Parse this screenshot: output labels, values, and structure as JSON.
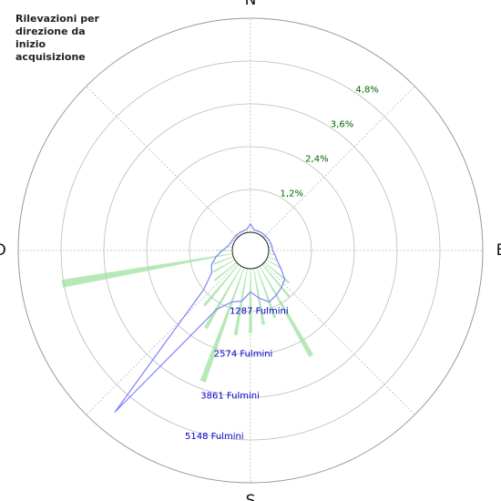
{
  "chart_data": {
    "type": "polar",
    "title": "Rilevazioni per direzione da inizio acquisizione",
    "x": [
      0,
      10,
      20,
      30,
      40,
      50,
      60,
      70,
      80,
      90,
      100,
      110,
      120,
      130,
      140,
      150,
      160,
      170,
      180,
      190,
      200,
      210,
      220,
      230,
      240,
      250,
      260,
      270,
      280,
      290,
      300,
      310,
      320,
      330,
      340,
      350
    ],
    "direction_ticks": [
      {
        "value": 0,
        "label": "N"
      },
      {
        "value": 90,
        "label": "E"
      },
      {
        "value": 180,
        "label": "S"
      },
      {
        "value": 270,
        "label": "O"
      }
    ],
    "series": [
      {
        "color": "#9fe09f",
        "values": [
          0.1,
          0.1,
          0.1,
          0.1,
          0.1,
          0.1,
          0.1,
          0.1,
          0.1,
          0.1,
          0.2,
          0.3,
          0.5,
          0.9,
          1.2,
          2.9,
          1.5,
          1.6,
          1.8,
          1.9,
          3.4,
          2.0,
          1.5,
          0.8,
          0.7,
          0.6,
          4.85,
          0.4,
          0.2,
          0.1,
          0.1,
          0.1,
          0.1,
          0.1,
          0.1,
          0.1
        ]
      },
      {
        "color": "#8080ff",
        "axis": "y2",
        "values": [
          250,
          80,
          80,
          80,
          80,
          80,
          90,
          100,
          110,
          120,
          200,
          300,
          500,
          800,
          900,
          1000,
          1100,
          900,
          700,
          1000,
          1100,
          1500,
          5800,
          1300,
          800,
          700,
          500,
          300,
          150,
          100,
          80,
          80,
          80,
          80,
          80,
          100
        ]
      }
    ],
    "ylim": [
      0,
      6
    ],
    "yticks": [
      {
        "value": 1.2,
        "label": "1,2%"
      },
      {
        "value": 2.4,
        "label": "2,4%"
      },
      {
        "value": 3.6,
        "label": "3,6%"
      },
      {
        "value": 4.8,
        "label": "4,8%"
      }
    ],
    "y2lim": [
      0,
      6435
    ],
    "y2ticks": [
      {
        "value": 1287,
        "label": "1287 Fulmini"
      },
      {
        "value": 2574,
        "label": "2574 Fulmini"
      },
      {
        "value": 3861,
        "label": "3861 Fulmini"
      },
      {
        "value": 5148,
        "label": "5148 Fulmini"
      }
    ],
    "grid": true
  }
}
